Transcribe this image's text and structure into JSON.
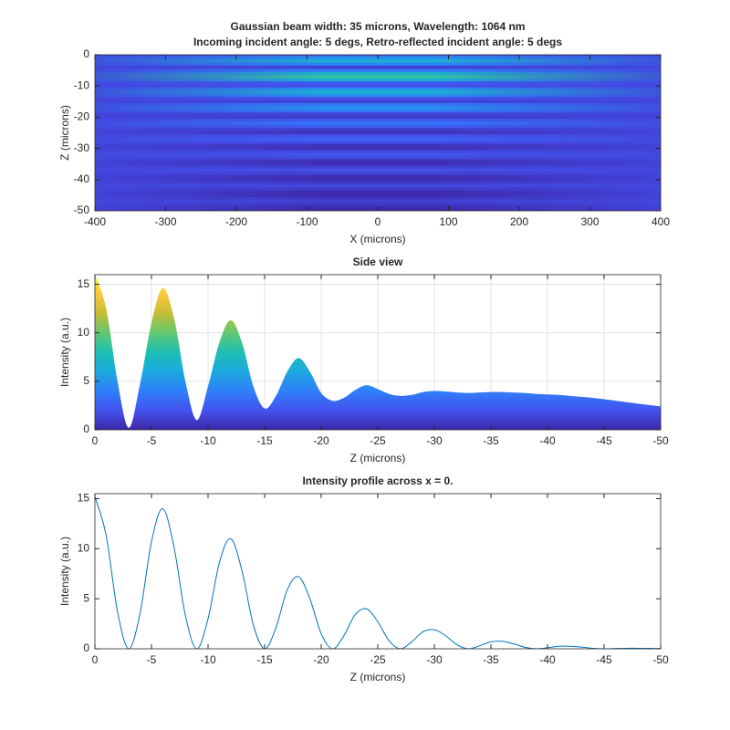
{
  "chart_data": [
    {
      "type": "heatmap",
      "title": [
        "Gaussian beam width: 35 microns, Wavelength: 1064 nm",
        "Incoming incident angle: 5 degs, Retro-reflected incident angle: 5 degs"
      ],
      "xlabel": "X (microns)",
      "ylabel": "Z (microns)",
      "xlim": [
        -400,
        400
      ],
      "xticks": [
        -400,
        -300,
        -200,
        -100,
        0,
        100,
        200,
        300,
        400
      ],
      "ylim": [
        -50,
        0
      ],
      "yticks": [
        -50,
        -40,
        -30,
        -20,
        -10,
        0
      ],
      "grid": false,
      "colormap": [
        "#3e26a8",
        "#4353ef",
        "#2f7ff9",
        "#1ba9e0",
        "#1ebfb3",
        "#62c871",
        "#c3bd35",
        "#fbc73a",
        "#f9fb0e"
      ],
      "clim": [
        0,
        26
      ],
      "y": [
        0,
        -1,
        -2,
        -3,
        -4,
        -5,
        -6,
        -7,
        -8,
        -9,
        -10,
        -11,
        -12,
        -13,
        -14,
        -15,
        -16,
        -17,
        -18,
        -19,
        -20,
        -21,
        -22,
        -23,
        -24,
        -25,
        -26,
        -27,
        -28,
        -29,
        -30,
        -31,
        -32,
        -33,
        -34,
        -35,
        -36,
        -37,
        -38,
        -39,
        -40,
        -41,
        -42,
        -43,
        -44,
        -45,
        -46,
        -47,
        -48,
        -49,
        -50
      ],
      "values": [
        4,
        8,
        11,
        7,
        2,
        6,
        11,
        14,
        11,
        4,
        3,
        8,
        11,
        8,
        3,
        2,
        6,
        8,
        6,
        2,
        1.5,
        4,
        6,
        4,
        1.5,
        1,
        3,
        4.5,
        3,
        1,
        0.8,
        2.5,
        3.5,
        2.5,
        0.8,
        0.6,
        2,
        3,
        2,
        0.6,
        0.4,
        1.5,
        2.5,
        1.5,
        0.4,
        0.3,
        1.2,
        2,
        1.2,
        0.3,
        0.2
      ]
    },
    {
      "type": "area",
      "title": [
        "Side view"
      ],
      "xlabel": "Z (microns)",
      "ylabel": "Intensity (a.u.)",
      "xlim": [
        0,
        -50
      ],
      "xticks": [
        0,
        -5,
        -10,
        -15,
        -20,
        -25,
        -30,
        -35,
        -40,
        -45,
        -50
      ],
      "ylim": [
        0,
        16
      ],
      "yticks": [
        0,
        5,
        10,
        15
      ],
      "grid": true,
      "colormap": [
        "#3e26a8",
        "#4353ef",
        "#2f7ff9",
        "#1ba9e0",
        "#1ebfb3",
        "#62c871",
        "#c3bd35",
        "#fbc73a",
        "#f9fb0e"
      ],
      "clim": [
        0,
        16
      ],
      "x": [
        0,
        -1,
        -2,
        -3,
        -4,
        -5,
        -6,
        -7,
        -8,
        -9,
        -10,
        -11,
        -12,
        -13,
        -14,
        -15,
        -16,
        -17,
        -18,
        -19,
        -20,
        -21,
        -22,
        -23,
        -24,
        -25,
        -26,
        -27,
        -28,
        -29,
        -30,
        -31,
        -32,
        -33,
        -34,
        -35,
        -36,
        -37,
        -38,
        -39,
        -40,
        -41,
        -42,
        -43,
        -44,
        -45,
        -46,
        -47,
        -48,
        -49,
        -50
      ],
      "values": [
        16,
        12.5,
        5,
        0.2,
        4.8,
        11,
        14.6,
        11.5,
        5,
        1,
        4.5,
        9,
        11.3,
        9,
        4.5,
        2.2,
        3.5,
        6,
        7.4,
        6,
        3.8,
        3,
        3.3,
        4.1,
        4.6,
        4.2,
        3.7,
        3.5,
        3.6,
        3.9,
        4,
        3.95,
        3.85,
        3.8,
        3.85,
        3.9,
        3.9,
        3.85,
        3.8,
        3.7,
        3.65,
        3.6,
        3.5,
        3.4,
        3.3,
        3.15,
        3,
        2.85,
        2.7,
        2.55,
        2.4
      ]
    },
    {
      "type": "line",
      "title": [
        "Intensity profile across x = 0."
      ],
      "xlabel": "Z (microns)",
      "ylabel": "Intensity (a.u.)",
      "xlim": [
        0,
        -50
      ],
      "xticks": [
        0,
        -5,
        -10,
        -15,
        -20,
        -25,
        -30,
        -35,
        -40,
        -45,
        -50
      ],
      "ylim": [
        0,
        15.5
      ],
      "yticks": [
        0,
        5,
        10,
        15
      ],
      "grid": false,
      "color": "#0072bd",
      "x": [
        0,
        -1,
        -2,
        -3,
        -4,
        -5,
        -6,
        -7,
        -8,
        -9,
        -10,
        -11,
        -12,
        -13,
        -14,
        -15,
        -16,
        -17,
        -18,
        -19,
        -20,
        -21,
        -22,
        -23,
        -24,
        -25,
        -26,
        -27,
        -28,
        -29,
        -30,
        -31,
        -32,
        -33,
        -34,
        -35,
        -36,
        -37,
        -38,
        -39,
        -40,
        -41,
        -42,
        -43,
        -44,
        -45,
        -46,
        -47,
        -48,
        -49,
        -50
      ],
      "values": [
        15.2,
        11.3,
        3.7,
        0,
        3.6,
        10.7,
        14,
        10.1,
        3.3,
        0,
        3,
        8.6,
        11,
        7.8,
        2.4,
        0,
        2.1,
        5.9,
        7.2,
        5,
        1.5,
        0,
        1.3,
        3.4,
        4,
        2.7,
        0.8,
        0,
        0.7,
        1.7,
        1.9,
        1.3,
        0.4,
        0,
        0.3,
        0.7,
        0.75,
        0.5,
        0.15,
        0,
        0.1,
        0.25,
        0.25,
        0.17,
        0.05,
        0,
        0.03,
        0.05,
        0.05,
        0.04,
        0.02
      ]
    }
  ]
}
